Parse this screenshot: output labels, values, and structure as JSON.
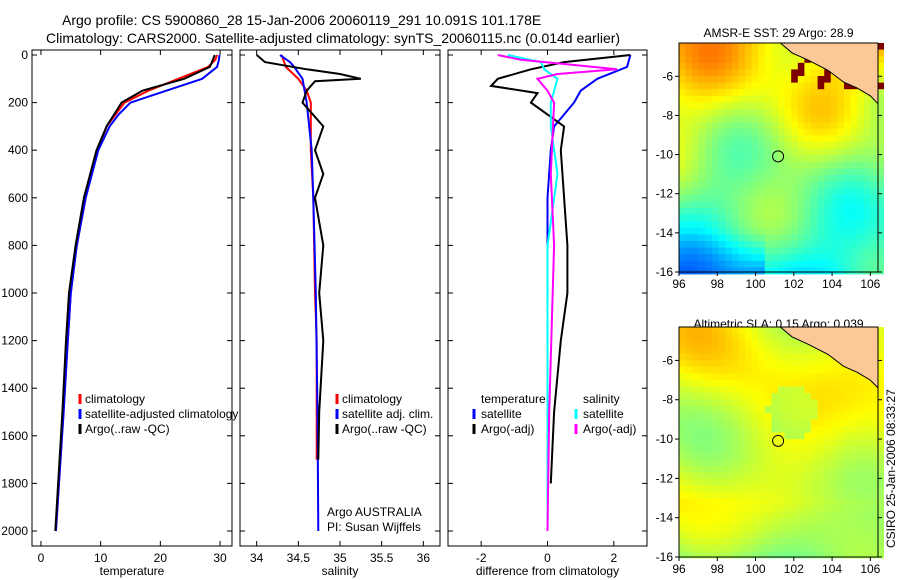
{
  "title": {
    "line1": "Argo profile: CS 5900860_28 15-Jan-2006 20060119_291 10.091S 101.178E",
    "line2": "Climatology: CARS2000. Satellite-adjusted climatology: synTS_20060115.nc (0.014d earlier)"
  },
  "colors": {
    "climatology": "#ff0000",
    "satellite": "#0000ff",
    "argo": "#000000",
    "sal_satellite": "#00ffff",
    "sal_argo": "#ff00ff"
  },
  "chart_data": [
    {
      "type": "line",
      "xlabel": "temperature",
      "ylabel": "",
      "xlim": [
        -1.5,
        32
      ],
      "ylim": [
        2050,
        0
      ],
      "xticks": [
        "0",
        "10",
        "20",
        "30"
      ],
      "xtick_values": [
        0,
        10,
        20,
        30
      ],
      "yticks": [
        "0",
        "200",
        "400",
        "600",
        "800",
        "1000",
        "1200",
        "1400",
        "1600",
        "1800",
        "2000"
      ],
      "legend": [
        "climatology",
        "satellite-adjusted climatology",
        "Argo(..raw -QC)"
      ],
      "series": [
        {
          "name": "climatology",
          "color": "#ff0000",
          "depth": [
            0,
            20,
            50,
            100,
            150,
            200,
            300,
            400,
            600,
            800,
            1000,
            1200,
            1500,
            2000
          ],
          "values": [
            29.5,
            29.2,
            28,
            23,
            18,
            14,
            11,
            9.5,
            7.5,
            6,
            5,
            4.5,
            3.8,
            2.5
          ]
        },
        {
          "name": "satellite-adjusted climatology",
          "color": "#0000ff",
          "depth": [
            0,
            20,
            50,
            100,
            150,
            200,
            250,
            300,
            400,
            600,
            800,
            1000,
            1200,
            1500,
            2000
          ],
          "values": [
            29.9,
            29.8,
            29.5,
            27,
            21,
            15,
            13,
            11.5,
            9.6,
            7.5,
            6,
            5,
            4.5,
            3.8,
            2.5
          ]
        },
        {
          "name": "Argo(..raw -QC)",
          "color": "#000000",
          "depth": [
            0,
            20,
            50,
            100,
            150,
            200,
            300,
            400,
            600,
            800,
            1000,
            1200,
            1500,
            2000
          ],
          "values": [
            29.1,
            28.8,
            28.3,
            24,
            17,
            13.5,
            11,
            9.3,
            7.2,
            5.8,
            4.7,
            4.2,
            3.6,
            2.4
          ]
        }
      ]
    },
    {
      "type": "line",
      "xlabel": "salinity",
      "xlim": [
        33.8,
        36.2
      ],
      "ylim": [
        2050,
        0
      ],
      "xticks": [
        "34",
        "34.5",
        "35",
        "35.5",
        "36"
      ],
      "xtick_values": [
        34,
        34.5,
        35,
        35.5,
        36
      ],
      "legend": [
        "climatology",
        "satellite adj. clim.",
        "Argo(..raw -QC)"
      ],
      "annotations": [
        "Argo AUSTRALIA",
        "PI: Susan Wijffels"
      ],
      "series": [
        {
          "name": "climatology",
          "color": "#ff0000",
          "depth": [
            0,
            50,
            100,
            150,
            200,
            400,
            600,
            1000,
            1200,
            1700
          ],
          "values": [
            34.3,
            34.35,
            34.5,
            34.6,
            34.65,
            34.65,
            34.68,
            34.7,
            34.72,
            34.72
          ]
        },
        {
          "name": "satellite adj. clim.",
          "color": "#0000ff",
          "depth": [
            0,
            30,
            50,
            100,
            200,
            400,
            600,
            1000,
            1500,
            2000
          ],
          "values": [
            34.28,
            34.4,
            34.45,
            34.55,
            34.6,
            34.66,
            34.68,
            34.71,
            34.73,
            34.74
          ]
        },
        {
          "name": "Argo(..raw -QC)",
          "color": "#000000",
          "depth": [
            0,
            30,
            60,
            80,
            100,
            110,
            150,
            200,
            300,
            400,
            500,
            600,
            800,
            1000,
            1200,
            1500,
            1700
          ],
          "values": [
            34.0,
            34.1,
            34.6,
            35.0,
            35.25,
            34.7,
            34.6,
            34.55,
            34.8,
            34.7,
            34.8,
            34.7,
            34.8,
            34.75,
            34.8,
            34.75,
            34.74
          ]
        }
      ]
    },
    {
      "type": "line",
      "xlabel": "difference from climatology",
      "xlim": [
        -3,
        3
      ],
      "ylim": [
        2050,
        0
      ],
      "xticks": [
        "-2",
        "0",
        "2"
      ],
      "xtick_values": [
        -2,
        0,
        2
      ],
      "legend_temperature": {
        "heading": "temperature",
        "items": [
          "satellite",
          "Argo(-adj)"
        ]
      },
      "legend_salinity": {
        "heading": "salinity",
        "items": [
          "satellite",
          "Argo(-adj)"
        ]
      },
      "series": [
        {
          "name": "temperature satellite",
          "color": "#0000ff",
          "depth": [
            0,
            50,
            100,
            150,
            200,
            250,
            300,
            400,
            600,
            2000
          ],
          "values": [
            2.5,
            2.4,
            1.5,
            1.0,
            0.8,
            0.5,
            0.2,
            0.1,
            0,
            0
          ]
        },
        {
          "name": "temperature Argo(-adj)",
          "color": "#000000",
          "depth": [
            0,
            30,
            60,
            100,
            130,
            160,
            200,
            300,
            400,
            600,
            800,
            1000,
            1200,
            1500,
            1800
          ],
          "values": [
            2.5,
            0.5,
            -0.5,
            -1.5,
            -1.7,
            -0.3,
            -0.5,
            0.5,
            0.4,
            0.5,
            0.6,
            0.6,
            0.4,
            0.2,
            0.1
          ]
        },
        {
          "name": "salinity satellite",
          "color": "#00ffff",
          "depth": [
            0,
            30,
            60,
            100,
            200,
            300,
            500,
            800,
            1000,
            2000
          ],
          "values": [
            -1.2,
            -0.2,
            -0.1,
            0.3,
            0.1,
            0.1,
            0.3,
            0,
            0,
            0
          ]
        },
        {
          "name": "salinity Argo(-adj)",
          "color": "#ff00ff",
          "depth": [
            0,
            20,
            60,
            80,
            100,
            150,
            200,
            500,
            800,
            1500,
            2000
          ],
          "values": [
            -1.5,
            -0.8,
            2.1,
            0.3,
            -0.3,
            0,
            0.2,
            0.1,
            0.2,
            0.05,
            0
          ]
        }
      ]
    },
    {
      "type": "heatmap",
      "title": "AMSR-E SST: 29 Argo: 28.9",
      "xlim": [
        96,
        106.4
      ],
      "ylim": [
        -16,
        -4.3
      ],
      "xticks": [
        "96",
        "98",
        "100",
        "102",
        "104",
        "106"
      ],
      "yticks": [
        "-6",
        "-8",
        "-10",
        "-12",
        "-14",
        "-16"
      ],
      "argo_position": [
        101.178,
        -10.091
      ]
    },
    {
      "type": "heatmap",
      "title": "Altimetric SLA: 0.15 Argo: 0.039",
      "xlim": [
        96,
        106.4
      ],
      "ylim": [
        -16,
        -4.3
      ],
      "xticks": [
        "96",
        "98",
        "100",
        "102",
        "104",
        "106"
      ],
      "yticks": [
        "-6",
        "-8",
        "-10",
        "-12",
        "-14",
        "-16"
      ],
      "argo_position": [
        101.178,
        -10.091
      ]
    }
  ],
  "footer": "CSIRO 25-Jan-2006 08:33:27"
}
